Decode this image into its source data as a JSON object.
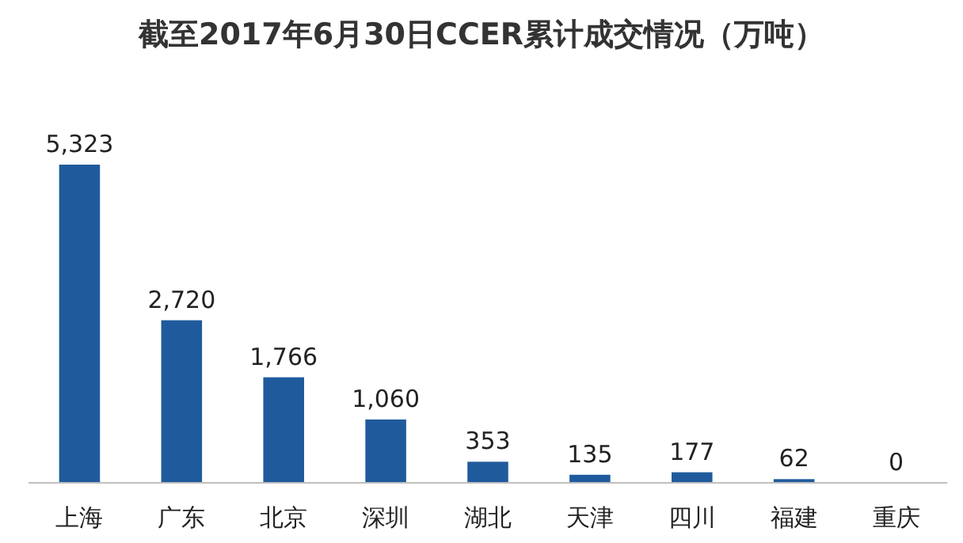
{
  "chart_data": {
    "type": "bar",
    "title": "截至2017年6月30日CCER累计成交情况（万吨）",
    "categories": [
      "上海",
      "广东",
      "北京",
      "深圳",
      "湖北",
      "天津",
      "四川",
      "福建",
      "重庆"
    ],
    "values": [
      5323,
      2720,
      1766,
      1060,
      353,
      135,
      177,
      62,
      0
    ],
    "value_labels": [
      "5,323",
      "2,720",
      "1,766",
      "1,060",
      "353",
      "135",
      "177",
      "62",
      "0"
    ],
    "color": "#1f5b9c",
    "ylim": [
      0,
      5323
    ],
    "tick_labels": "x"
  }
}
